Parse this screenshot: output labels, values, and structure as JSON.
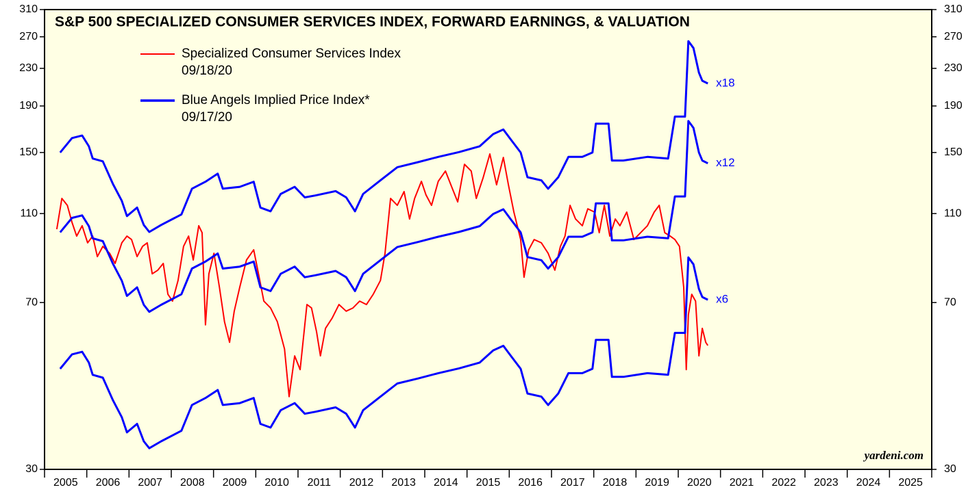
{
  "chart_data": {
    "type": "line",
    "title": "S&P 500 SPECIALIZED CONSUMER SERVICES INDEX, FORWARD EARNINGS, & VALUATION",
    "credit": "yardeni.com",
    "log_scale": true,
    "ylim": [
      30,
      310
    ],
    "yticks": [
      30,
      70,
      110,
      150,
      190,
      230,
      270,
      310
    ],
    "xlim": [
      2005,
      2026
    ],
    "xticks": [
      2005,
      2006,
      2007,
      2008,
      2009,
      2010,
      2011,
      2012,
      2013,
      2014,
      2015,
      2016,
      2017,
      2018,
      2019,
      2020,
      2021,
      2022,
      2023,
      2024,
      2025,
      2026
    ],
    "year_labels": [
      2005,
      2006,
      2007,
      2008,
      2009,
      2010,
      2011,
      2012,
      2013,
      2014,
      2015,
      2016,
      2017,
      2018,
      2019,
      2020,
      2021,
      2022,
      2023,
      2024,
      2025
    ],
    "series": [
      {
        "name": "Specialized Consumer Services Index",
        "date": "09/18/20",
        "color": "#ff0000",
        "x": [
          2005.29,
          2005.41,
          2005.54,
          2005.65,
          2005.76,
          2005.89,
          2006.02,
          2006.14,
          2006.25,
          2006.38,
          2006.54,
          2006.67,
          2006.83,
          2006.95,
          2007.06,
          2007.19,
          2007.32,
          2007.43,
          2007.55,
          2007.68,
          2007.81,
          2007.92,
          2008.03,
          2008.16,
          2008.29,
          2008.41,
          2008.52,
          2008.65,
          2008.73,
          2008.81,
          2008.89,
          2009.01,
          2009.14,
          2009.26,
          2009.38,
          2009.49,
          2009.62,
          2009.78,
          2009.95,
          2010.08,
          2010.19,
          2010.35,
          2010.51,
          2010.68,
          2010.79,
          2010.92,
          2011.05,
          2011.21,
          2011.32,
          2011.44,
          2011.53,
          2011.65,
          2011.81,
          2011.97,
          2012.14,
          2012.3,
          2012.46,
          2012.62,
          2012.78,
          2012.95,
          2013.06,
          2013.19,
          2013.35,
          2013.51,
          2013.64,
          2013.76,
          2013.92,
          2014.03,
          2014.16,
          2014.32,
          2014.49,
          2014.65,
          2014.78,
          2014.94,
          2015.1,
          2015.22,
          2015.38,
          2015.54,
          2015.7,
          2015.86,
          2015.98,
          2016.11,
          2016.27,
          2016.35,
          2016.46,
          2016.59,
          2016.76,
          2016.92,
          2017.08,
          2017.21,
          2017.32,
          2017.44,
          2017.57,
          2017.73,
          2017.86,
          2018.02,
          2018.13,
          2018.25,
          2018.38,
          2018.51,
          2018.62,
          2018.78,
          2018.95,
          2019.11,
          2019.27,
          2019.43,
          2019.55,
          2019.68,
          2019.81,
          2019.92,
          2020.03,
          2020.13,
          2020.19,
          2020.24,
          2020.32,
          2020.41,
          2020.49,
          2020.57,
          2020.65,
          2020.7
        ],
        "values": [
          101.6,
          118.8,
          114.7,
          105.2,
          98.1,
          103.4,
          94.8,
          98.1,
          88.4,
          93.1,
          89.9,
          85.4,
          94.8,
          98.1,
          96.4,
          88.4,
          93.1,
          94.8,
          81.0,
          82.5,
          85.4,
          73.0,
          70.5,
          78.3,
          93.1,
          98.1,
          86.9,
          103.4,
          99.8,
          62.5,
          81.0,
          89.9,
          75.6,
          63.5,
          57.2,
          67.0,
          75.6,
          86.9,
          91.5,
          79.6,
          70.5,
          68.1,
          63.5,
          55.3,
          43.4,
          53.4,
          49.8,
          69.3,
          68.1,
          60.3,
          53.4,
          61.4,
          64.7,
          69.3,
          67.0,
          68.1,
          70.5,
          69.3,
          73.0,
          78.3,
          89.9,
          118.8,
          114.7,
          123.0,
          107.0,
          118.8,
          129.6,
          120.9,
          114.7,
          129.6,
          136.5,
          125.1,
          116.7,
          141.3,
          136.5,
          118.8,
          131.8,
          148.9,
          127.3,
          146.3,
          127.3,
          110.8,
          96.4,
          79.6,
          91.5,
          96.4,
          94.8,
          89.9,
          82.5,
          93.1,
          98.1,
          114.7,
          107.0,
          103.4,
          112.7,
          110.8,
          99.8,
          114.7,
          98.1,
          107.0,
          103.4,
          110.8,
          96.4,
          99.8,
          103.4,
          110.8,
          114.7,
          99.8,
          98.1,
          96.4,
          93.1,
          75.6,
          49.8,
          65.8,
          73.0,
          70.5,
          53.4,
          61.4,
          57.2,
          56.3
        ]
      },
      {
        "name": "Blue Angels Implied Price Index*",
        "date": "09/17/20",
        "color": "#0000ff",
        "x": [
          2005.37,
          2005.65,
          2005.89,
          2006.05,
          2006.14,
          2006.38,
          2006.62,
          2006.83,
          2006.95,
          2007.19,
          2007.35,
          2007.48,
          2007.76,
          2008.24,
          2008.49,
          2008.81,
          2009.1,
          2009.22,
          2009.62,
          2009.95,
          2010.11,
          2010.35,
          2010.59,
          2010.92,
          2011.16,
          2011.41,
          2011.89,
          2012.14,
          2012.35,
          2012.54,
          2012.95,
          2013.35,
          2013.84,
          2014.32,
          2014.81,
          2015.3,
          2015.62,
          2015.86,
          2016.03,
          2016.27,
          2016.43,
          2016.76,
          2016.92,
          2017.16,
          2017.4,
          2017.73,
          2017.97,
          2018.05,
          2018.35,
          2018.43,
          2018.7,
          2019.27,
          2019.76,
          2019.92,
          2020.16,
          2020.24,
          2020.36,
          2020.49,
          2020.57,
          2020.7
        ],
        "bands": [
          {
            "label": "x18",
            "values": [
              150,
              161.4,
              163.5,
              154.8,
              145.5,
              143.4,
              127.8,
              117.3,
              108.6,
              113.4,
              103.8,
              100.2,
              103.8,
              109.5,
              124.8,
              129.3,
              134.7,
              124.8,
              126,
              129.3,
              113.4,
              111.3,
              121.5,
              126,
              119.4,
              120.6,
              123.3,
              119.4,
              111.3,
              121.5,
              130.2,
              139.2,
              142.8,
              146.7,
              150.3,
              154.8,
              164.7,
              168.6,
              160.5,
              150,
              132.3,
              130.2,
              124.8,
              132.3,
              146.7,
              146.7,
              150,
              173.7,
              173.7,
              144,
              144,
              146.7,
              145.5,
              180,
              180,
              264,
              255,
              225,
              216,
              213
            ]
          },
          {
            "label": "x12",
            "values": [
              100,
              107.6,
              109,
              103.2,
              97,
              95.6,
              85.2,
              78.2,
              72.4,
              75.6,
              69.2,
              66.8,
              69.2,
              73,
              83.2,
              86.2,
              89.8,
              83.2,
              84,
              86.2,
              75.6,
              74.2,
              81,
              84,
              79.6,
              80.4,
              82.2,
              79.6,
              74.2,
              81,
              86.8,
              92.8,
              95.2,
              97.8,
              100.2,
              103.2,
              109.8,
              112.4,
              107,
              100,
              88.2,
              86.8,
              83.2,
              88.2,
              97.8,
              97.8,
              100,
              115.8,
              115.8,
              96,
              96,
              97.8,
              97,
              120,
              120,
              176,
              170,
              150,
              144,
              142
            ]
          },
          {
            "label": "x6",
            "values": [
              50,
              53.8,
              54.5,
              51.6,
              48.5,
              47.8,
              42.6,
              39.1,
              36.2,
              37.8,
              34.6,
              33.4,
              34.6,
              36.5,
              41.6,
              43.1,
              44.9,
              41.6,
              42.0,
              43.1,
              37.8,
              37.1,
              40.5,
              42.0,
              39.8,
              40.2,
              41.1,
              39.8,
              37.1,
              40.5,
              43.4,
              46.4,
              47.6,
              48.9,
              50.1,
              51.6,
              54.9,
              56.2,
              53.5,
              50.0,
              44.1,
              43.4,
              41.6,
              44.1,
              48.9,
              48.9,
              50.0,
              57.9,
              57.9,
              48.0,
              48.0,
              48.9,
              48.5,
              60.0,
              60.0,
              88,
              85,
              75,
              72,
              71
            ]
          }
        ]
      }
    ]
  }
}
